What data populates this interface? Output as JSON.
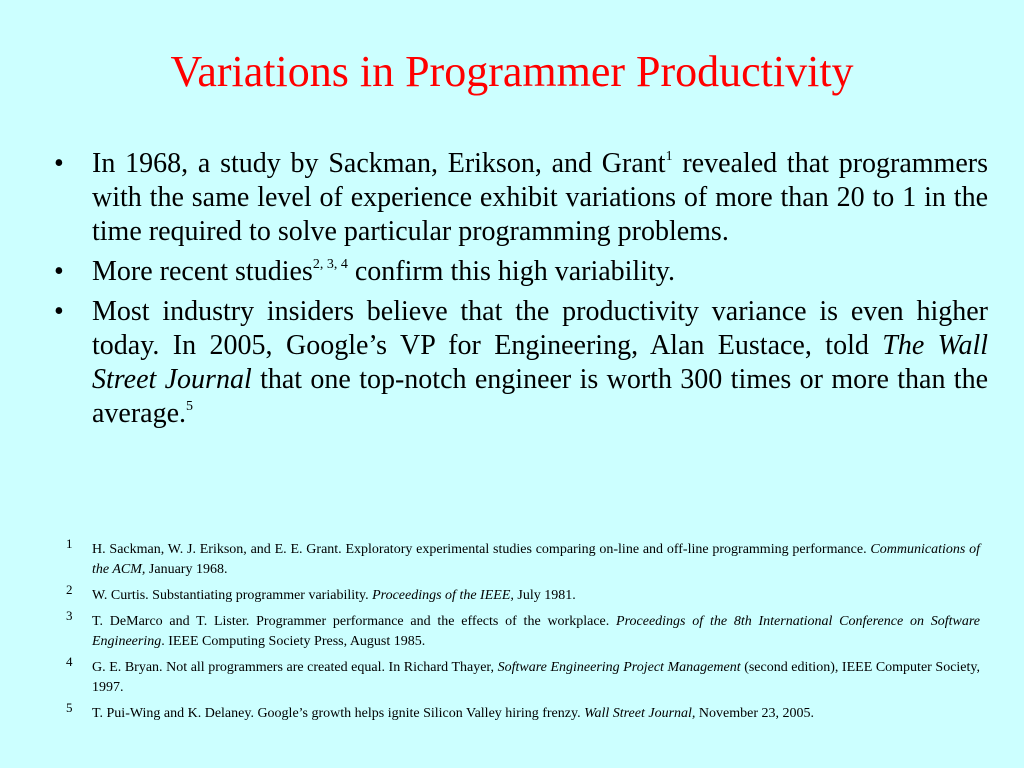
{
  "slide": {
    "title": "Variations in Programmer Productivity"
  },
  "bullets": {
    "marker": "•",
    "b1": {
      "text_a": "In 1968, a study by Sackman, Erikson, and Grant",
      "sup": "1",
      "text_b": " revealed that programmers with the same level of experience exhibit variations of more than 20 to 1 in the time required to solve particular programming problems."
    },
    "b2": {
      "text_a": "More recent studies",
      "sup": "2, 3, 4",
      "text_b": " confirm this high variability."
    },
    "b3": {
      "text_a": "Most industry insiders believe that the productivity variance is even higher today.  In 2005, Google’s VP for Engineering, Alan Eustace, told ",
      "italic": "The Wall Street Journal",
      "text_b": " that one top-notch engineer is worth 300 times or more than the average.",
      "sup": "5"
    }
  },
  "references": [
    {
      "num": "1",
      "text_a": "H. Sackman, W. J. Erikson, and E. E. Grant. Exploratory experimental studies comparing on-line and off-line programming performance. ",
      "italic": "Communications of the ACM,",
      "text_b": " January 1968."
    },
    {
      "num": "2",
      "text_a": "W. Curtis. Substantiating programmer variability. ",
      "italic": "Proceedings of the IEEE,",
      "text_b": " July 1981."
    },
    {
      "num": "3",
      "text_a": "T. DeMarco and T. Lister. Programmer performance and the effects of the workplace. ",
      "italic": "Proceedings of the 8th International Conference on Software Engineering",
      "text_b": ". IEEE Computing Society Press, August 1985."
    },
    {
      "num": "4",
      "text_a": "G. E. Bryan. Not all programmers are created equal. In Richard Thayer, ",
      "italic": "Software Engineering Project Management",
      "text_b": " (second edition), IEEE Computer Society, 1997."
    },
    {
      "num": "5",
      "text_a": "T. Pui-Wing and K. Delaney. Google’s growth helps ignite Silicon Valley hiring frenzy.  ",
      "italic": "Wall Street Journal,",
      "text_b": " November 23, 2005."
    }
  ],
  "colors": {
    "background": "#ccffff",
    "title": "#ff0000",
    "text": "#000000"
  }
}
